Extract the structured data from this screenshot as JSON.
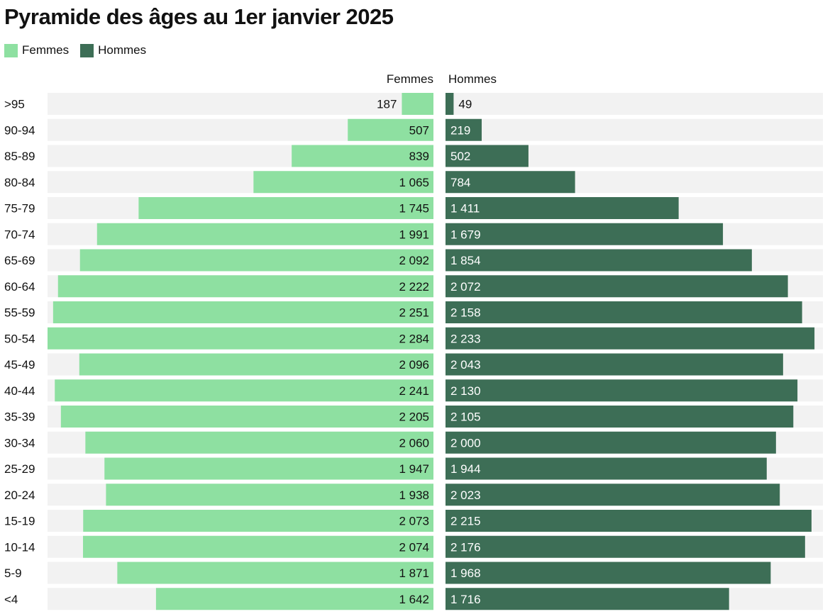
{
  "chart_data": {
    "type": "bar",
    "orientation": "horizontal-pyramid",
    "title": "Pyramide des âges au 1er janvier 2025",
    "legend": {
      "placement": "top-left",
      "entries": [
        "Femmes",
        "Hommes"
      ]
    },
    "column_labels": {
      "left": "Femmes",
      "right": "Hommes"
    },
    "categories": [
      "<4",
      "5-9",
      "10-14",
      "15-19",
      "20-24",
      "25-29",
      "30-34",
      "35-39",
      "40-44",
      "45-49",
      "50-54",
      "55-59",
      "60-64",
      "65-69",
      "70-74",
      "75-79",
      "80-84",
      "85-89",
      "90-94",
      ">95"
    ],
    "series": [
      {
        "name": "Femmes",
        "color": "#8ee0a1",
        "values": [
          1642,
          1871,
          2074,
          2073,
          1938,
          1947,
          2060,
          2205,
          2241,
          2096,
          2284,
          2251,
          2222,
          2092,
          1991,
          1745,
          1065,
          839,
          507,
          187
        ],
        "labels": [
          "1 642",
          "1 871",
          "2 074",
          "2 073",
          "1 938",
          "1 947",
          "2 060",
          "2 205",
          "2 241",
          "2 096",
          "2 284",
          "2 251",
          "2 222",
          "2 092",
          "1 991",
          "1 745",
          "1 065",
          "839",
          "507",
          "187"
        ]
      },
      {
        "name": "Hommes",
        "color": "#3d6e56",
        "values": [
          1716,
          1968,
          2176,
          2215,
          2023,
          1944,
          2000,
          2105,
          2130,
          2043,
          2233,
          2158,
          2072,
          1854,
          1679,
          1411,
          784,
          502,
          219,
          49
        ],
        "labels": [
          "1 716",
          "1 968",
          "2 176",
          "2 215",
          "2 023",
          "1 944",
          "2 000",
          "2 105",
          "2 130",
          "2 043",
          "2 233",
          "2 158",
          "2 072",
          "1 854",
          "1 679",
          "1 411",
          "784",
          "502",
          "219",
          "49"
        ]
      }
    ],
    "xlim": [
      0,
      2284
    ],
    "grid": false,
    "track_color": "#f2f2f2"
  }
}
